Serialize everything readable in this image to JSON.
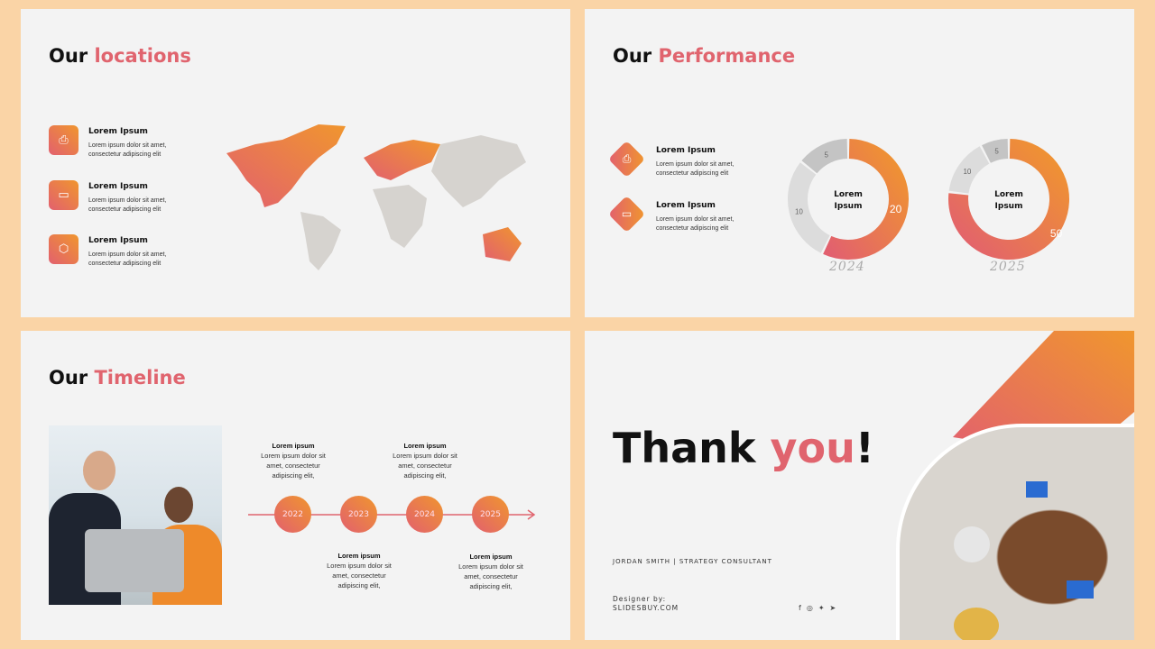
{
  "colors": {
    "accent": "#e0646e",
    "gradient_start": "#e2606f",
    "gradient_end": "#f0962e",
    "background": "#fad4a6",
    "slide": "#f3f3f3"
  },
  "locations": {
    "title_a": "Our",
    "title_b": "locations",
    "items": [
      {
        "icon": "printer-icon",
        "title": "Lorem Ipsum",
        "line1": "Lorem ipsum dolor sit amet,",
        "line2": "consectetur adipiscing elit"
      },
      {
        "icon": "tv-icon",
        "title": "Lorem Ipsum",
        "line1": "Lorem ipsum dolor sit amet,",
        "line2": "consectetur adipiscing elit"
      },
      {
        "icon": "box-icon",
        "title": "Lorem Ipsum",
        "line1": "Lorem ipsum dolor sit amet,",
        "line2": "consectetur adipiscing elit"
      }
    ]
  },
  "performance": {
    "title_a": "Our",
    "title_b": "Performance",
    "items": [
      {
        "icon": "printer-icon",
        "title": "Lorem Ipsum",
        "line1": "Lorem ipsum dolor sit amet,",
        "line2": "consectetur adipiscing elit"
      },
      {
        "icon": "tv-icon",
        "title": "Lorem Ipsum",
        "line1": "Lorem ipsum dolor sit amet,",
        "line2": "consectetur adipiscing elit"
      }
    ]
  },
  "chart_data": [
    {
      "type": "pie",
      "donut": true,
      "title": "2024",
      "center_label": "Lorem Ipsum",
      "values": [
        20,
        10,
        5
      ],
      "colors": [
        "gradient",
        "#dcdcdc",
        "#c4c4c4"
      ]
    },
    {
      "type": "pie",
      "donut": true,
      "title": "2025",
      "center_label": "Lorem Ipsum",
      "values": [
        50,
        10,
        5
      ],
      "colors": [
        "gradient",
        "#dcdcdc",
        "#c4c4c4"
      ]
    }
  ],
  "timeline": {
    "title_a": "Our",
    "title_b": "Timeline",
    "events": [
      {
        "year": "2022",
        "title": "Lorem ipsum",
        "text": "Lorem ipsum dolor sit amet, consectetur adipiscing elit,",
        "position": "above"
      },
      {
        "year": "2023",
        "title": "Lorem ipsum",
        "text": "Lorem ipsum dolor sit amet, consectetur adipiscing elit,",
        "position": "below"
      },
      {
        "year": "2024",
        "title": "Lorem ipsum",
        "text": "Lorem ipsum dolor sit amet, consectetur adipiscing elit,",
        "position": "above"
      },
      {
        "year": "2025",
        "title": "Lorem ipsum",
        "text": "Lorem ipsum dolor sit amet, consectetur adipiscing elit,",
        "position": "below"
      }
    ]
  },
  "thanks": {
    "title_a": "Thank ",
    "title_b": "you",
    "title_c": "!",
    "byline": "JORDAN SMITH | STRATEGY CONSULTANT",
    "designer_label": "Designer by:",
    "designer_site": "SLIDESBUY.COM",
    "social": [
      "facebook-icon",
      "instagram-icon",
      "twitter-icon",
      "telegram-icon"
    ]
  }
}
